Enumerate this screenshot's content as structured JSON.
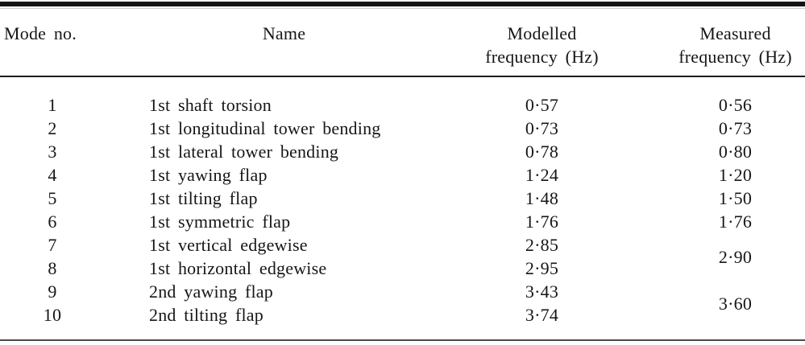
{
  "table": {
    "header": {
      "mode_no": "Mode no.",
      "name": "Name",
      "modelled_line1": "Modelled",
      "modelled_line2": "frequency (Hz)",
      "measured_line1": "Measured",
      "measured_line2": "frequency (Hz)"
    },
    "rows": [
      {
        "no": "1",
        "name": "1st shaft torsion",
        "modelled": "0·57",
        "measured": "0·56",
        "measured_rowspan": 1
      },
      {
        "no": "2",
        "name": "1st longitudinal tower bending",
        "modelled": "0·73",
        "measured": "0·73",
        "measured_rowspan": 1
      },
      {
        "no": "3",
        "name": "1st lateral tower bending",
        "modelled": "0·78",
        "measured": "0·80",
        "measured_rowspan": 1
      },
      {
        "no": "4",
        "name": "1st yawing flap",
        "modelled": "1·24",
        "measured": "1·20",
        "measured_rowspan": 1
      },
      {
        "no": "5",
        "name": "1st tilting flap",
        "modelled": "1·48",
        "measured": "1·50",
        "measured_rowspan": 1
      },
      {
        "no": "6",
        "name": "1st symmetric flap",
        "modelled": "1·76",
        "measured": "1·76",
        "measured_rowspan": 1
      },
      {
        "no": "7",
        "name": "1st vertical edgewise",
        "modelled": "2·85",
        "measured": "2·90",
        "measured_rowspan": 2
      },
      {
        "no": "8",
        "name": "1st horizontal edgewise",
        "modelled": "2·95",
        "measured": null,
        "measured_rowspan": 0
      },
      {
        "no": "9",
        "name": "2nd yawing flap",
        "modelled": "3·43",
        "measured": "3·60",
        "measured_rowspan": 2
      },
      {
        "no": "10",
        "name": "2nd tilting flap",
        "modelled": "3·74",
        "measured": null,
        "measured_rowspan": 0
      }
    ]
  }
}
